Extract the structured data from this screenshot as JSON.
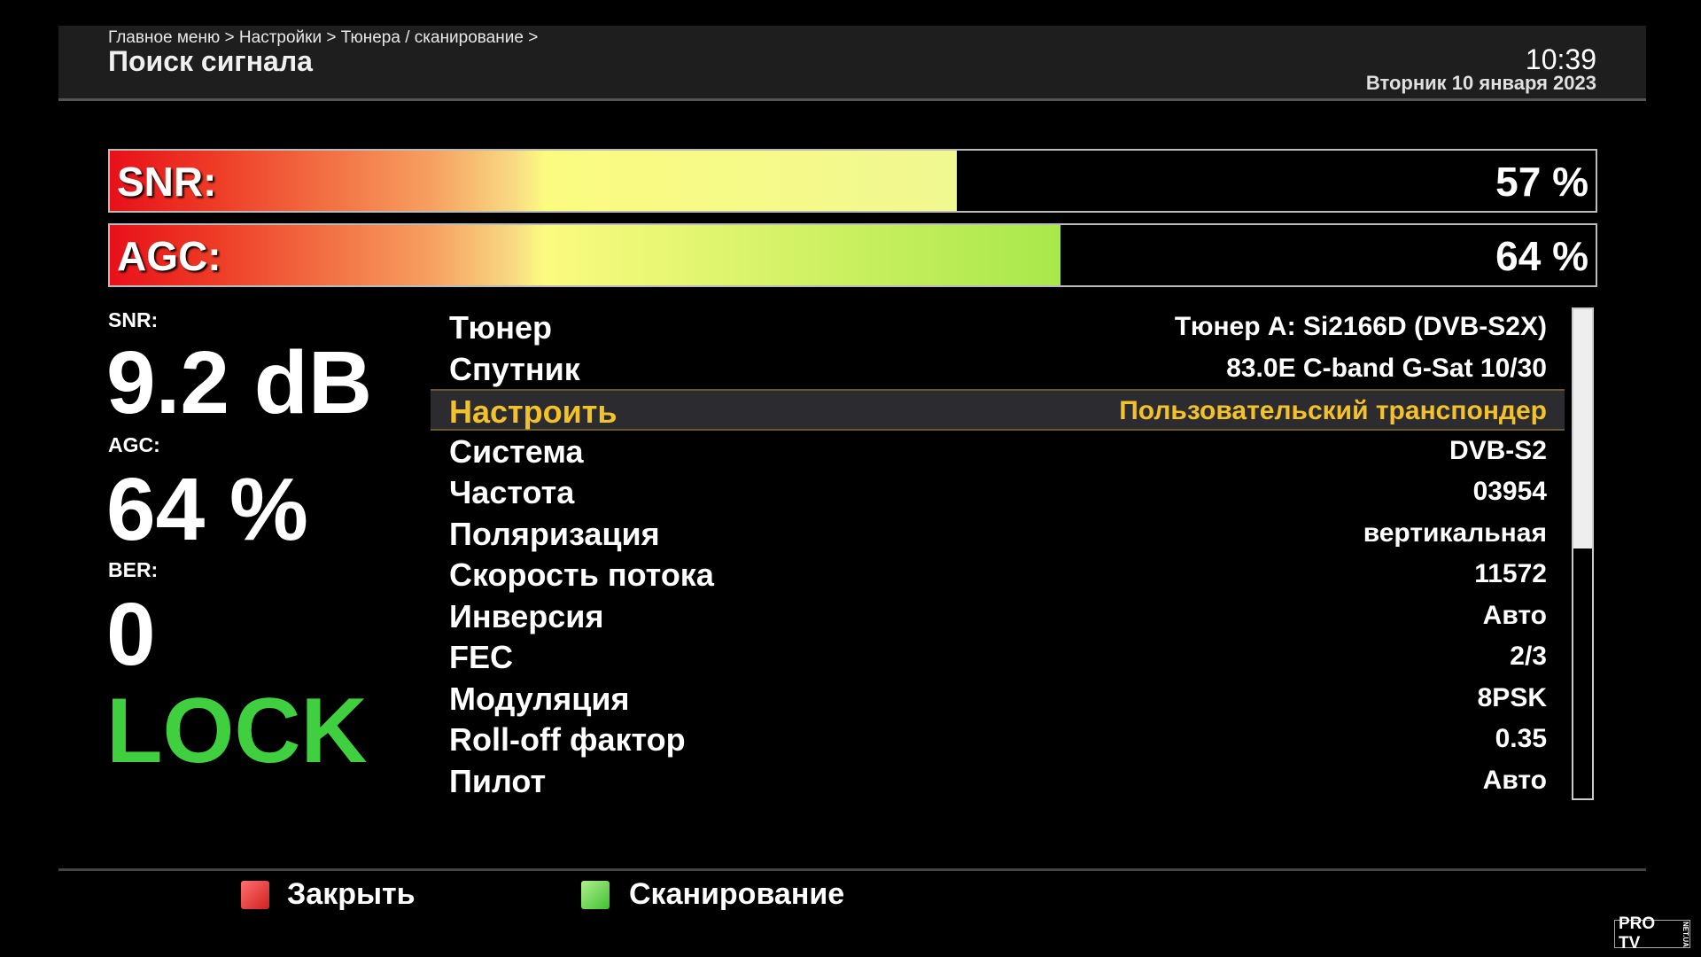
{
  "header": {
    "breadcrumb": "Главное меню > Настройки > Тюнера / сканирование >",
    "title": "Поиск сигнала",
    "time": "10:39",
    "date": "Вторник 10 января 2023"
  },
  "bars": [
    {
      "label": "SNR:",
      "value_text": "57 %",
      "percent": 57
    },
    {
      "label": "AGC:",
      "value_text": "64 %",
      "percent": 64
    }
  ],
  "stats": {
    "snr_label": "SNR:",
    "snr_value": "9.2 dB",
    "agc_label": "AGC:",
    "agc_value": "64 %",
    "ber_label": "BER:",
    "ber_value": "0",
    "lock": "LOCK",
    "lock_color": "#3fcf3f"
  },
  "rows": [
    {
      "label": "Тюнер",
      "value": "Тюнер A: Si2166D (DVB-S2X)"
    },
    {
      "label": "Спутник",
      "value": "83.0E C-band G-Sat 10/30"
    },
    {
      "label": "Настроить",
      "value": "Пользовательский транспондер",
      "selected": true
    },
    {
      "label": "Система",
      "value": "DVB-S2"
    },
    {
      "label": "Частота",
      "value": "03954"
    },
    {
      "label": "Поляризация",
      "value": "вертикальная"
    },
    {
      "label": "Скорость потока",
      "value": "11572"
    },
    {
      "label": "Инверсия",
      "value": "Авто"
    },
    {
      "label": "FEC",
      "value": "2/3"
    },
    {
      "label": "Модуляция",
      "value": "8PSK"
    },
    {
      "label": "Roll-off фактор",
      "value": "0.35"
    },
    {
      "label": "Пилот",
      "value": "Авто"
    }
  ],
  "scrollbar": {
    "thumb_fraction": 0.49
  },
  "footer": {
    "close": "Закрыть",
    "scan": "Сканирование",
    "close_color": "#d02020",
    "scan_color": "#40c030"
  },
  "watermark": {
    "text": "PRO TV",
    "sub": "NET.UA"
  }
}
